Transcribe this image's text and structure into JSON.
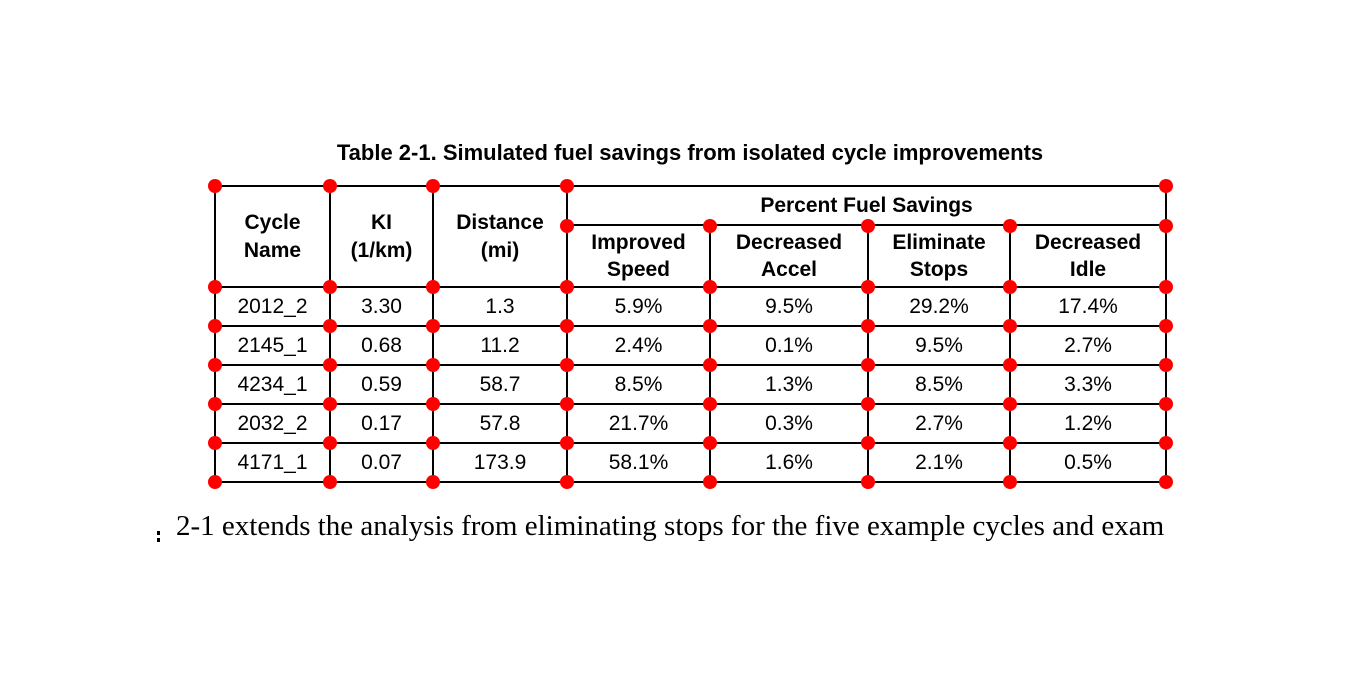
{
  "caption": "Table 2-1. Simulated fuel savings from isolated cycle improvements",
  "table": {
    "headers": [
      "Cycle\nName",
      "KI\n(1/km)",
      "Distance\n(mi)"
    ],
    "group_header": "Percent Fuel Savings",
    "sub_headers": [
      "Improved\nSpeed",
      "Decreased\nAccel",
      "Eliminate\nStops",
      "Decreased\nIdle"
    ],
    "rows": [
      [
        "2012_2",
        "3.30",
        "1.3",
        "5.9%",
        "9.5%",
        "29.2%",
        "17.4%"
      ],
      [
        "2145_1",
        "0.68",
        "11.2",
        "2.4%",
        "0.1%",
        "9.5%",
        "2.7%"
      ],
      [
        "4234_1",
        "0.59",
        "58.7",
        "8.5%",
        "1.3%",
        "8.5%",
        "3.3%"
      ],
      [
        "2032_2",
        "0.17",
        "57.8",
        "21.7%",
        "0.3%",
        "2.7%",
        "1.2%"
      ],
      [
        "4171_1",
        "0.07",
        "173.9",
        "58.1%",
        "1.6%",
        "2.1%",
        "0.5%"
      ]
    ]
  },
  "body_text": "2-1 extends the analysis from eliminating stops for the five example cycles and exam",
  "markers": {
    "color": "#ff0000"
  }
}
